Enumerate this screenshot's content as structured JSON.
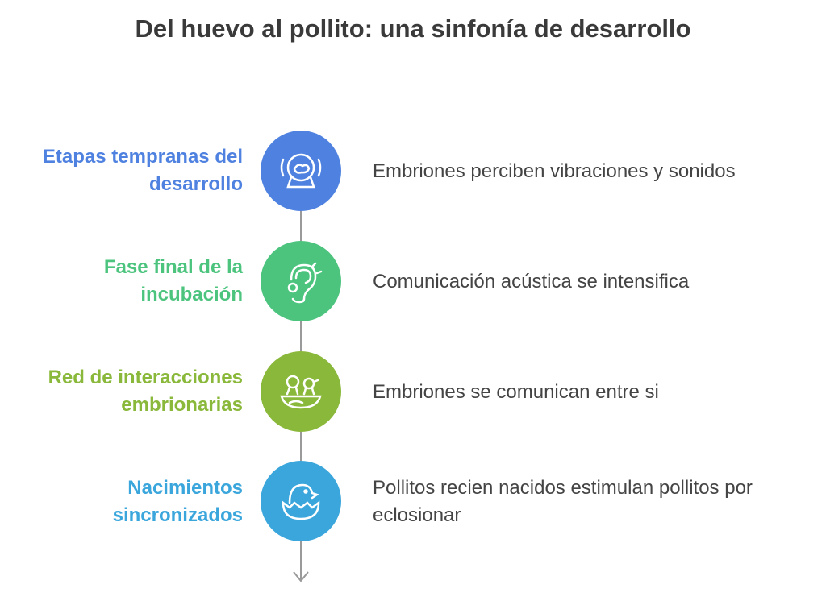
{
  "title": "Del huevo al pollito: una sinfonía de desarrollo",
  "steps": [
    {
      "label": "Etapas tempranas del desarrollo",
      "description": "Embriones perciben vibraciones y sonidos",
      "color": "#4f82e0",
      "icon": "egg-in-globe-icon"
    },
    {
      "label": "Fase final de la incubación",
      "description": "Comunicación acústica se intensifica",
      "color": "#4cc47e",
      "icon": "ear-icon"
    },
    {
      "label": "Red de interacciones embrionarias",
      "description": "Embriones se comunican entre si",
      "color": "#8ab83a",
      "icon": "chicks-in-nest-icon"
    },
    {
      "label": "Nacimientos sincronizados",
      "description": "Pollitos recien nacidos estimulan pollitos por eclosionar",
      "color": "#3aa6dc",
      "icon": "hatching-chick-icon"
    }
  ]
}
